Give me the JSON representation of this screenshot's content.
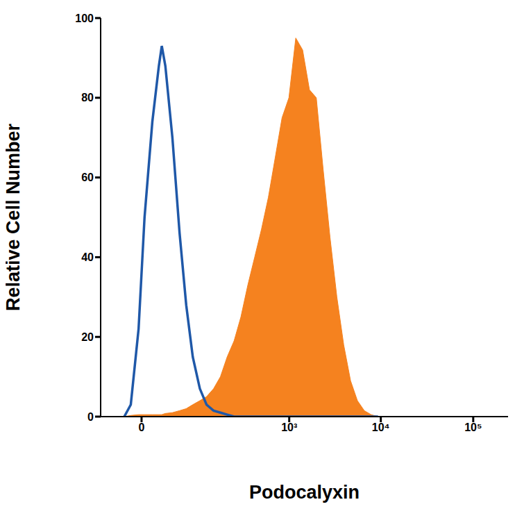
{
  "chart_data": {
    "type": "histogram",
    "x_label": "Podocalyxin",
    "y_label": "Relative Cell Number",
    "log": "x",
    "grid": false,
    "xlim": [
      -46,
      238000
    ],
    "xticks": [
      0,
      {
        "value": 1000,
        "label": "10³"
      },
      {
        "value": 10000,
        "label": "10⁴"
      },
      {
        "value": 100000,
        "label": "10⁵"
      }
    ],
    "ylim": [
      0,
      100
    ],
    "yticks": [
      0,
      20,
      40,
      60,
      80,
      100
    ],
    "x": [
      -14,
      -8,
      -2,
      2,
      8,
      14,
      17,
      21,
      30,
      41,
      53,
      67,
      85,
      105,
      130,
      159,
      193,
      234,
      282,
      340,
      408,
      488,
      584,
      698,
      832,
      992,
      1181,
      1406,
      1672,
      1987,
      2362,
      2806,
      3333,
      3957,
      4698,
      5575,
      6619,
      7853,
      9318
    ],
    "series": [
      {
        "type": "area",
        "color": "#f5821f",
        "values": [
          0,
          0.3,
          0.5,
          0.5,
          0.5,
          0.5,
          0.5,
          0.8,
          1,
          1.5,
          2,
          3,
          4,
          5,
          7,
          10,
          15,
          19,
          25,
          33,
          40,
          47,
          55,
          65,
          75,
          80,
          95,
          92,
          82,
          80,
          62,
          45,
          30,
          18,
          9,
          4,
          1.5,
          0.5,
          0
        ]
      },
      {
        "type": "line",
        "color": "#1f58a8",
        "values": [
          0,
          3,
          22,
          50,
          74,
          88,
          93,
          88,
          70,
          46,
          28,
          15,
          7,
          3,
          1.5,
          1,
          0.5,
          0,
          0,
          0,
          0,
          0,
          0,
          0,
          0,
          0,
          0,
          0,
          0,
          0,
          0,
          0,
          0,
          0,
          0,
          0,
          0,
          0,
          0
        ]
      }
    ]
  }
}
